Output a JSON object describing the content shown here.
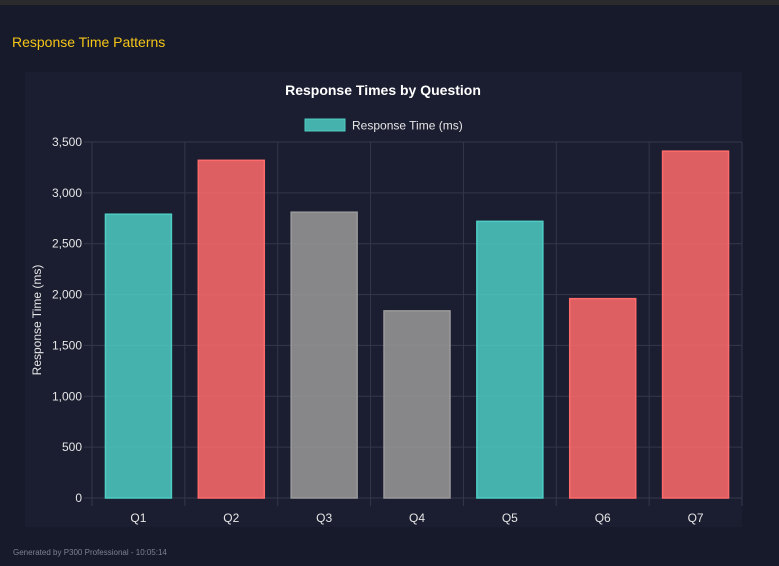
{
  "page": {
    "section_title": "Response Time Patterns",
    "footer": "Generated by P300 Professional - 10:05:14"
  },
  "chart_data": {
    "type": "bar",
    "title": "Response Times by Question",
    "legend": {
      "label": "Response Time (ms)",
      "position": "top",
      "color": "#4ecdc4"
    },
    "xlabel": "",
    "ylabel": "Response Time (ms)",
    "categories": [
      "Q1",
      "Q2",
      "Q3",
      "Q4",
      "Q5",
      "Q6",
      "Q7"
    ],
    "values": [
      2790,
      3320,
      2810,
      1840,
      2720,
      1960,
      3410
    ],
    "colors": [
      "#4ecdc4",
      "#ff6b6b",
      "#9a9a9a",
      "#9a9a9a",
      "#4ecdc4",
      "#ff6b6b",
      "#ff6b6b"
    ],
    "ylim": [
      0,
      3500
    ],
    "yticks": [
      0,
      500,
      1000,
      1500,
      2000,
      2500,
      3000,
      3500
    ],
    "ytick_labels": [
      "0",
      "500",
      "1,000",
      "1,500",
      "2,000",
      "2,500",
      "3,000",
      "3,500"
    ],
    "grid": true
  }
}
